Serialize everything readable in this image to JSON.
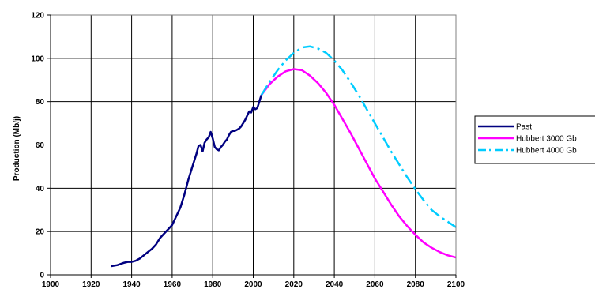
{
  "chart_data": {
    "type": "line",
    "title": "",
    "xlabel": "",
    "ylabel": "Production (Mb/j)",
    "xlim": [
      1900,
      2100
    ],
    "ylim": [
      0,
      120
    ],
    "x_ticks": [
      1900,
      1920,
      1940,
      1960,
      1980,
      2000,
      2020,
      2040,
      2060,
      2080,
      2100
    ],
    "y_ticks": [
      0,
      20,
      40,
      60,
      80,
      100,
      120
    ],
    "grid": true,
    "legend_position": "right",
    "series": [
      {
        "name": "Past",
        "color": "#000080",
        "style": "solid",
        "x": [
          1930,
          1933,
          1936,
          1938,
          1940,
          1942,
          1944,
          1946,
          1948,
          1950,
          1952,
          1954,
          1956,
          1958,
          1960,
          1962,
          1964,
          1966,
          1968,
          1970,
          1972,
          1973,
          1974,
          1975,
          1976,
          1977,
          1978,
          1979,
          1980,
          1981,
          1982,
          1983,
          1984,
          1985,
          1986,
          1987,
          1988,
          1989,
          1990,
          1991,
          1992,
          1993,
          1994,
          1995,
          1996,
          1997,
          1998,
          1999,
          2000,
          2001,
          2002,
          2003,
          2004
        ],
        "y": [
          4,
          4.5,
          5.5,
          6,
          6,
          6.5,
          7.5,
          9,
          10.5,
          12,
          14,
          17,
          19,
          21,
          23,
          27,
          31,
          37,
          44,
          50,
          56,
          59.5,
          60,
          57,
          61,
          62.5,
          63.5,
          66,
          63,
          59,
          58,
          57.5,
          59,
          60,
          61.5,
          62.5,
          64.5,
          66,
          66.5,
          66.5,
          67,
          67.5,
          68.5,
          70,
          71.5,
          73.5,
          75.5,
          75,
          77.5,
          76.5,
          77,
          80,
          83
        ]
      },
      {
        "name": "Hubbert 3000 Gb",
        "color": "#ff00ff",
        "style": "solid",
        "x": [
          2004,
          2008,
          2012,
          2016,
          2020,
          2024,
          2028,
          2032,
          2036,
          2040,
          2044,
          2048,
          2052,
          2056,
          2060,
          2064,
          2068,
          2072,
          2076,
          2080,
          2084,
          2088,
          2092,
          2096,
          2100
        ],
        "y": [
          83,
          88,
          91.5,
          94,
          95,
          94.5,
          92,
          88.5,
          84,
          78.5,
          72,
          65.5,
          58.5,
          51.5,
          44.5,
          38.5,
          32.5,
          27,
          22.5,
          18.5,
          15,
          12.5,
          10.5,
          9,
          8
        ]
      },
      {
        "name": "Hubbert 4000 Gb",
        "color": "#00ccff",
        "style": "dashed",
        "x": [
          2004,
          2008,
          2012,
          2016,
          2020,
          2024,
          2028,
          2032,
          2036,
          2040,
          2044,
          2048,
          2052,
          2056,
          2060,
          2064,
          2068,
          2072,
          2076,
          2080,
          2084,
          2088,
          2092,
          2096,
          2100
        ],
        "y": [
          83,
          89,
          94.5,
          99,
          102.5,
          105,
          105.5,
          104.5,
          102.5,
          99,
          94.5,
          89,
          83,
          76.5,
          70,
          63.5,
          57,
          51,
          45,
          39.5,
          34.5,
          30,
          27,
          24.5,
          22
        ]
      }
    ]
  }
}
